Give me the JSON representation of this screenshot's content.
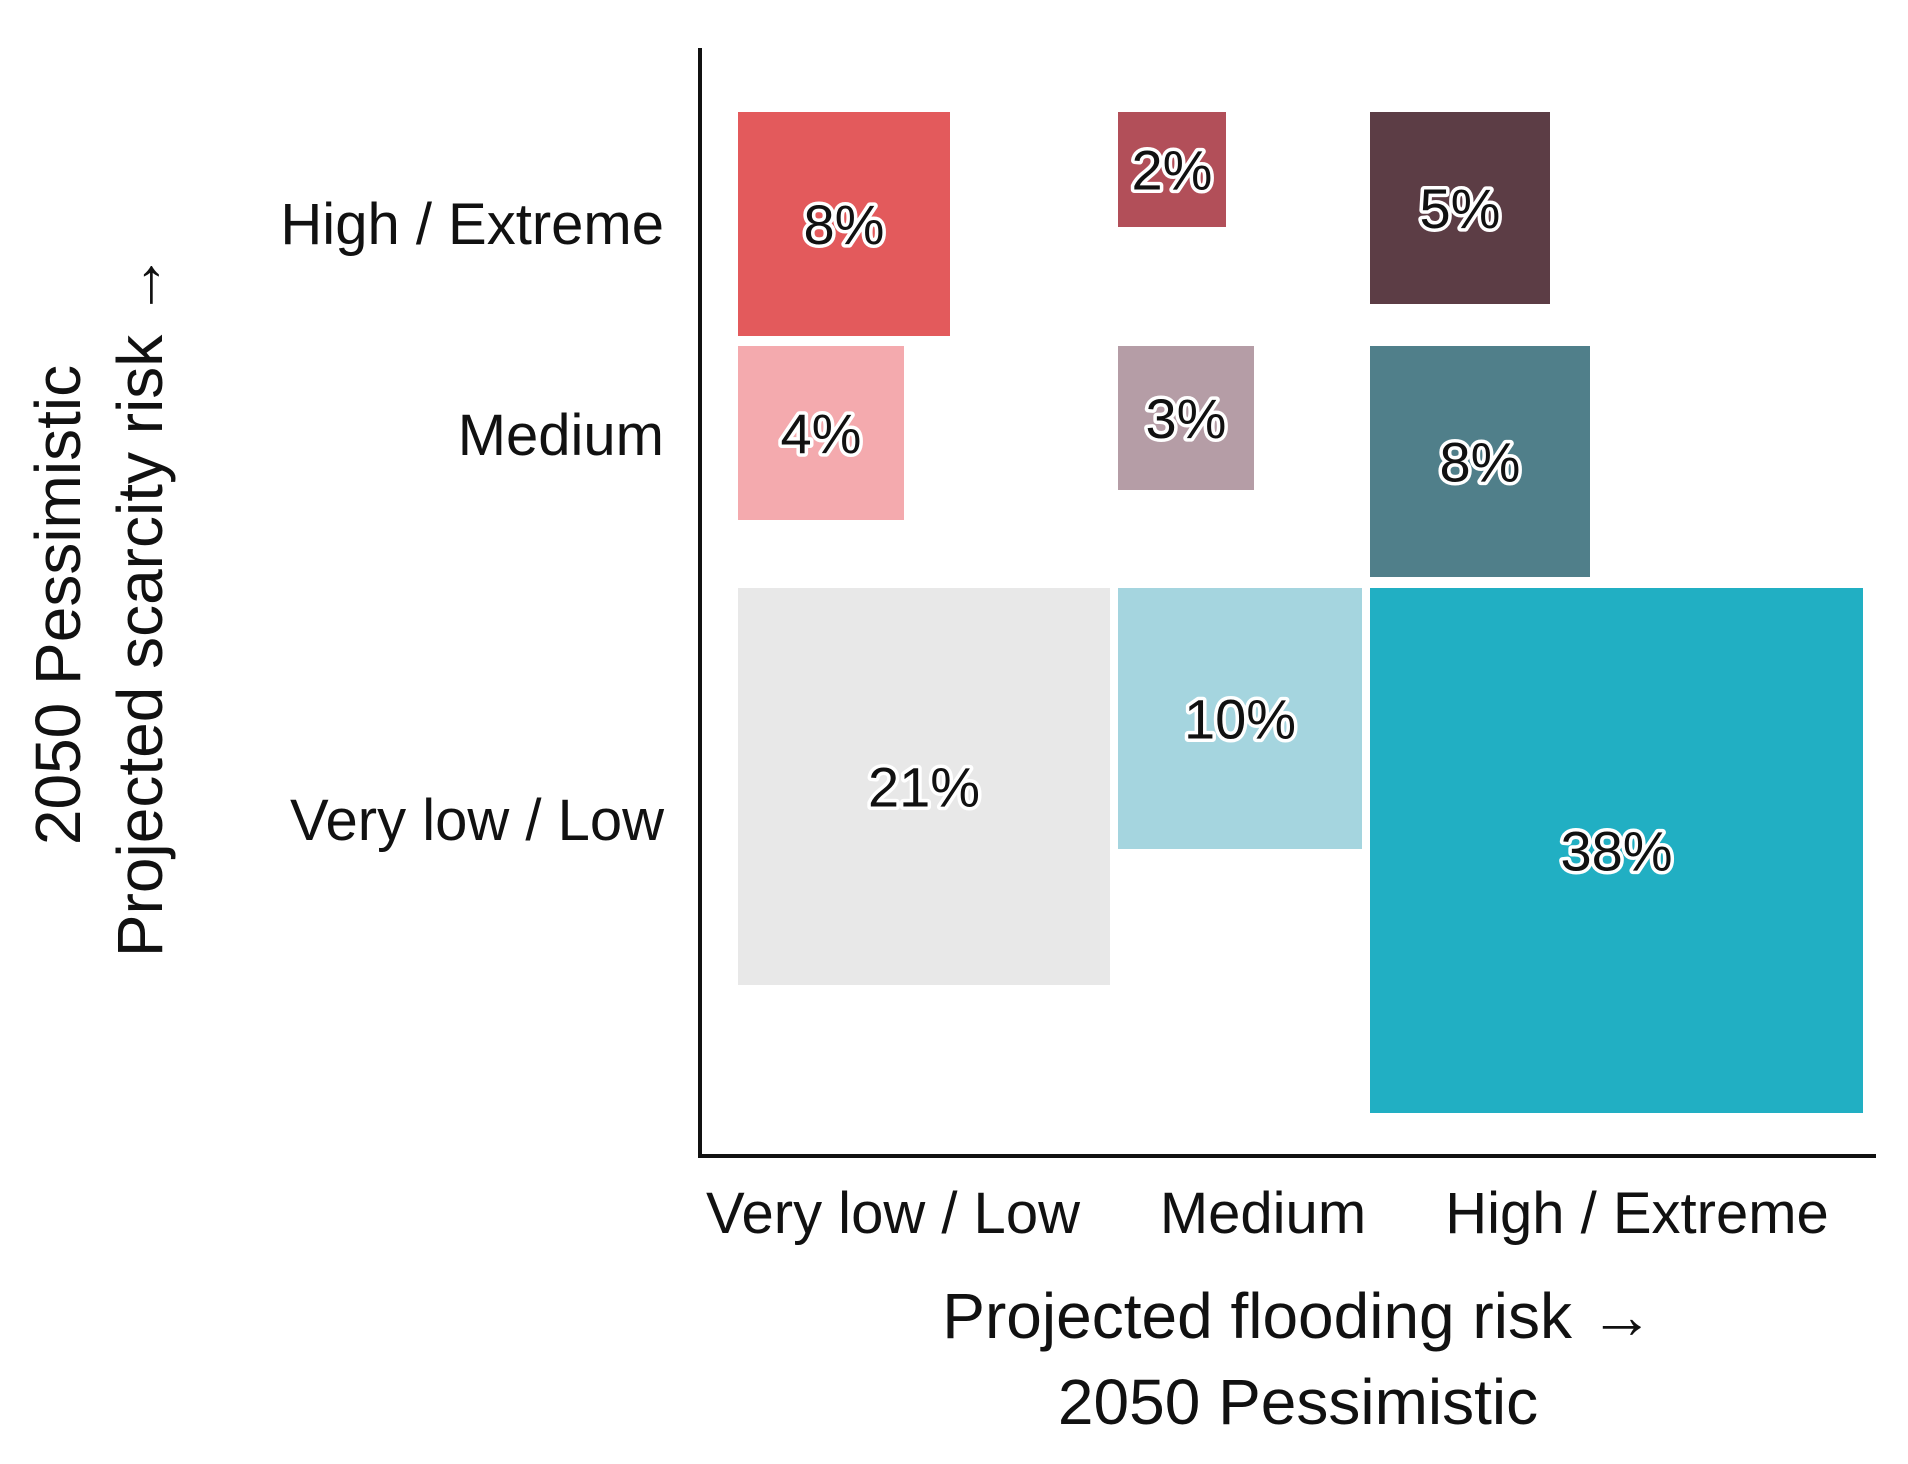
{
  "chart_data": {
    "type": "heatmap",
    "title": "",
    "x_axis": {
      "title_line1": "Projected flooding risk →",
      "title_line2": "2050 Pessimistic",
      "categories": [
        "Very low / Low",
        "Medium",
        "High / Extreme"
      ]
    },
    "y_axis": {
      "title_line1": "2050 Pessimistic",
      "title_line2": "Projected scarcity risk  →",
      "categories": [
        "Very low / Low",
        "Medium",
        "High / Extreme"
      ]
    },
    "cells": [
      {
        "flooding": "Very low / Low",
        "scarcity": "High / Extreme",
        "value": 8,
        "label": "8%",
        "color": "#e35a5c"
      },
      {
        "flooding": "Medium",
        "scarcity": "High / Extreme",
        "value": 2,
        "label": "2%",
        "color": "#b24f59"
      },
      {
        "flooding": "High / Extreme",
        "scarcity": "High / Extreme",
        "value": 5,
        "label": "5%",
        "color": "#5c3d45"
      },
      {
        "flooding": "Very low / Low",
        "scarcity": "Medium",
        "value": 4,
        "label": "4%",
        "color": "#f4aaae"
      },
      {
        "flooding": "Medium",
        "scarcity": "Medium",
        "value": 3,
        "label": "3%",
        "color": "#b59da6"
      },
      {
        "flooding": "High / Extreme",
        "scarcity": "Medium",
        "value": 8,
        "label": "8%",
        "color": "#507f8a"
      },
      {
        "flooding": "Very low / Low",
        "scarcity": "Very low / Low",
        "value": 21,
        "label": "21%",
        "color": "#e8e8e8"
      },
      {
        "flooding": "Medium",
        "scarcity": "Very low / Low",
        "value": 10,
        "label": "10%",
        "color": "#a5d5df"
      },
      {
        "flooding": "High / Extreme",
        "scarcity": "Very low / Low",
        "value": 38,
        "label": "38%",
        "color": "#21afc3"
      }
    ]
  }
}
